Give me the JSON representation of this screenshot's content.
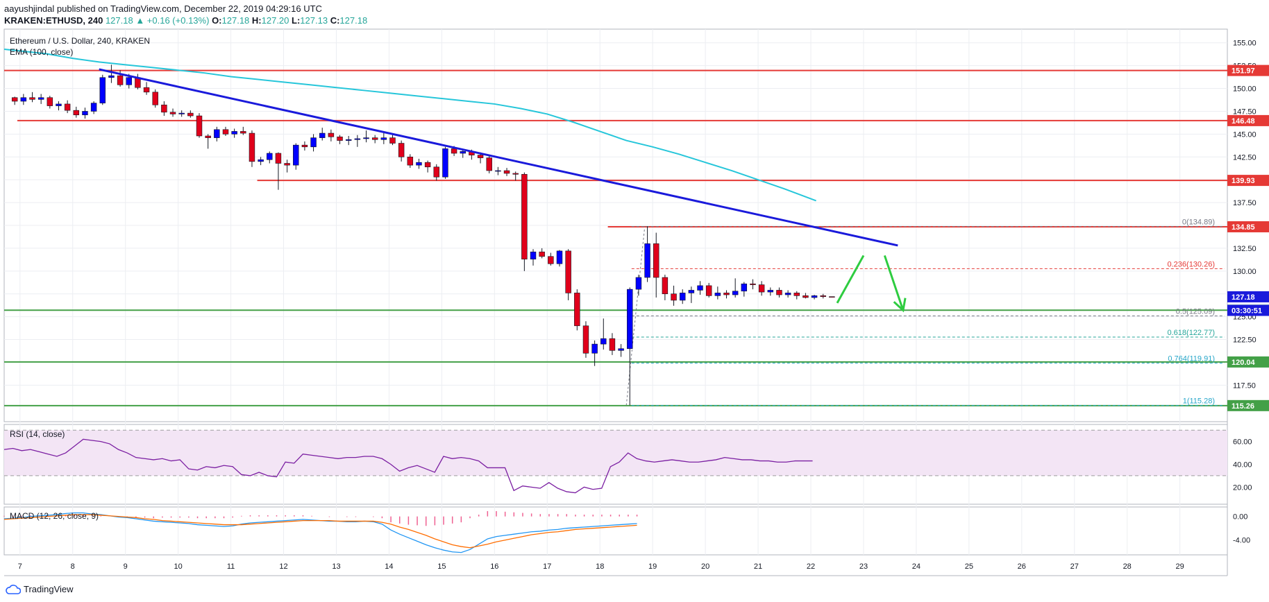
{
  "header": {
    "line1": "aayushjindal published on TradingView.com, December 22, 2019 04:29:16 UTC",
    "symbol": "KRAKEN:ETHUSD, 240",
    "last": "127.18",
    "change": "▲ +0.16 (+0.13%)",
    "o_label": "O:",
    "o": "127.18",
    "h_label": "H:",
    "h": "127.20",
    "l_label": "L:",
    "l": "127.13",
    "c_label": "C:",
    "c": "127.18"
  },
  "legend": {
    "title": "Ethereum / U.S. Dollar, 240, KRAKEN",
    "ema": "EMA (100, close)",
    "rsi": "RSI (14, close)",
    "macd": "MACD (12, 26, close, 9)"
  },
  "footer": {
    "brand": "TradingView"
  },
  "colors": {
    "up": "#0000ff",
    "down": "#e0001b",
    "ema": "#26c6da",
    "trend": "#1a1adb",
    "resistance": "#e53935",
    "support": "#43a047",
    "fib": "#26a6c9",
    "arrow": "#2ecc40",
    "rsi_line": "#7b1fa2",
    "macd_line": "#2196f3",
    "signal_line": "#ff6d00"
  },
  "chart_data": [
    {
      "type": "candlestick",
      "title": "Ethereum / U.S. Dollar, 240, KRAKEN",
      "ylim": [
        113.5,
        156.5
      ],
      "yticks": [
        "155.00",
        "152.50",
        "150.00",
        "147.50",
        "145.00",
        "142.50",
        "140.00",
        "137.50",
        "135.00",
        "132.50",
        "130.00",
        "127.50",
        "125.00",
        "122.50",
        "120.00",
        "117.50"
      ],
      "xticks": [
        "7",
        "8",
        "9",
        "10",
        "11",
        "12",
        "13",
        "14",
        "15",
        "16",
        "17",
        "18",
        "19",
        "20",
        "21",
        "22",
        "23",
        "24",
        "25",
        "26",
        "27",
        "28",
        "29"
      ],
      "x_start_day": 6.7,
      "x_end_day": 29.9,
      "candles_note": "4h OHLC candles, Dec 6.9 - Dec 22.1",
      "candles": [
        [
          149.0,
          149.1,
          148.2,
          148.6
        ],
        [
          148.6,
          149.4,
          148.2,
          149.0
        ],
        [
          149.0,
          149.6,
          148.5,
          148.8
        ],
        [
          148.8,
          149.4,
          148.3,
          149.0
        ],
        [
          149.0,
          149.2,
          147.8,
          148.1
        ],
        [
          148.1,
          148.6,
          147.6,
          148.3
        ],
        [
          148.3,
          148.7,
          147.3,
          147.6
        ],
        [
          147.6,
          148.0,
          146.8,
          147.1
        ],
        [
          147.1,
          147.9,
          146.7,
          147.5
        ],
        [
          147.5,
          148.6,
          147.2,
          148.4
        ],
        [
          148.4,
          151.5,
          148.2,
          151.2
        ],
        [
          151.2,
          152.6,
          150.6,
          151.4
        ],
        [
          151.4,
          152.0,
          150.2,
          150.4
        ],
        [
          150.4,
          151.6,
          150.0,
          151.2
        ],
        [
          151.2,
          151.6,
          149.9,
          150.1
        ],
        [
          150.1,
          150.7,
          149.3,
          149.6
        ],
        [
          149.6,
          149.9,
          147.9,
          148.2
        ],
        [
          148.2,
          148.6,
          147.0,
          147.4
        ],
        [
          147.4,
          147.8,
          146.9,
          147.2
        ],
        [
          147.2,
          147.6,
          146.9,
          147.3
        ],
        [
          147.3,
          147.6,
          146.8,
          147.0
        ],
        [
          147.0,
          147.3,
          144.6,
          144.8
        ],
        [
          144.8,
          145.0,
          143.4,
          144.6
        ],
        [
          144.6,
          145.8,
          144.2,
          145.5
        ],
        [
          145.5,
          145.8,
          144.8,
          145.0
        ],
        [
          145.0,
          145.6,
          144.6,
          145.3
        ],
        [
          145.3,
          145.8,
          144.9,
          145.1
        ],
        [
          145.1,
          145.4,
          141.4,
          142.0
        ],
        [
          142.0,
          142.5,
          141.6,
          142.2
        ],
        [
          142.2,
          143.1,
          141.8,
          142.9
        ],
        [
          142.9,
          143.0,
          138.9,
          141.8
        ],
        [
          141.8,
          142.2,
          140.8,
          141.6
        ],
        [
          141.6,
          144.0,
          141.1,
          143.8
        ],
        [
          143.8,
          144.2,
          143.2,
          143.6
        ],
        [
          143.6,
          145.0,
          143.1,
          144.6
        ],
        [
          144.6,
          145.7,
          144.3,
          145.1
        ],
        [
          145.1,
          145.5,
          144.2,
          144.7
        ],
        [
          144.7,
          144.9,
          143.9,
          144.3
        ],
        [
          144.3,
          144.8,
          143.8,
          144.4
        ],
        [
          144.4,
          144.9,
          143.6,
          144.5
        ],
        [
          144.5,
          145.4,
          144.1,
          144.6
        ],
        [
          144.6,
          144.9,
          144.0,
          144.4
        ],
        [
          144.4,
          145.2,
          143.9,
          144.6
        ],
        [
          144.6,
          145.1,
          143.8,
          144.0
        ],
        [
          144.0,
          144.3,
          142.0,
          142.5
        ],
        [
          142.5,
          142.8,
          141.3,
          141.6
        ],
        [
          141.6,
          142.3,
          141.2,
          141.9
        ],
        [
          141.9,
          142.1,
          140.8,
          141.4
        ],
        [
          141.4,
          141.7,
          139.9,
          140.3
        ],
        [
          140.3,
          143.6,
          140.1,
          143.4
        ],
        [
          143.4,
          143.7,
          142.6,
          142.9
        ],
        [
          142.9,
          143.4,
          142.4,
          143.1
        ],
        [
          143.1,
          143.3,
          142.2,
          142.7
        ],
        [
          142.7,
          143.0,
          141.8,
          142.4
        ],
        [
          142.4,
          142.6,
          140.7,
          141.0
        ],
        [
          141.0,
          141.4,
          140.5,
          141.0
        ],
        [
          141.0,
          141.3,
          140.4,
          140.7
        ],
        [
          140.7,
          140.9,
          139.9,
          140.6
        ],
        [
          140.6,
          140.8,
          130.0,
          131.3
        ],
        [
          131.3,
          132.4,
          130.6,
          132.1
        ],
        [
          132.1,
          132.5,
          131.4,
          131.6
        ],
        [
          131.6,
          132.0,
          130.6,
          130.8
        ],
        [
          130.8,
          132.3,
          130.5,
          132.2
        ],
        [
          132.2,
          132.4,
          126.8,
          127.6
        ],
        [
          127.6,
          128.0,
          123.5,
          124.0
        ],
        [
          124.0,
          124.5,
          120.5,
          121.0
        ],
        [
          121.0,
          122.4,
          119.6,
          122.0
        ],
        [
          122.0,
          124.8,
          121.4,
          122.6
        ],
        [
          122.6,
          123.2,
          120.8,
          121.3
        ],
        [
          121.3,
          122.0,
          120.6,
          121.5
        ],
        [
          121.5,
          128.2,
          115.3,
          128.0
        ],
        [
          128.0,
          129.6,
          127.3,
          129.3
        ],
        [
          129.3,
          134.9,
          128.8,
          133.0
        ],
        [
          133.0,
          134.2,
          127.1,
          129.3
        ],
        [
          129.3,
          129.6,
          126.8,
          127.5
        ],
        [
          127.5,
          128.4,
          126.2,
          126.8
        ],
        [
          126.8,
          128.0,
          126.4,
          127.6
        ],
        [
          127.6,
          128.3,
          126.5,
          127.9
        ],
        [
          127.9,
          128.9,
          127.4,
          128.4
        ],
        [
          128.4,
          128.7,
          127.1,
          127.3
        ],
        [
          127.3,
          128.3,
          126.9,
          127.6
        ],
        [
          127.6,
          127.9,
          127.0,
          127.4
        ],
        [
          127.4,
          129.2,
          127.1,
          127.8
        ],
        [
          127.8,
          128.8,
          127.2,
          128.6
        ],
        [
          128.6,
          129.1,
          128.0,
          128.5
        ],
        [
          128.5,
          128.9,
          127.3,
          127.7
        ],
        [
          127.7,
          128.2,
          127.3,
          127.9
        ],
        [
          127.9,
          128.2,
          127.1,
          127.4
        ],
        [
          127.4,
          127.9,
          127.1,
          127.6
        ],
        [
          127.6,
          127.8,
          126.9,
          127.3
        ],
        [
          127.3,
          127.6,
          127.0,
          127.1
        ],
        [
          127.1,
          127.4,
          126.9,
          127.3
        ],
        [
          127.3,
          127.5,
          127.0,
          127.2
        ],
        [
          127.2,
          127.2,
          127.1,
          127.18
        ]
      ],
      "ema": [
        [
          6.7,
          154.3
        ],
        [
          7.5,
          153.8
        ],
        [
          8.0,
          153.3
        ],
        [
          8.5,
          152.9
        ],
        [
          9.0,
          152.6
        ],
        [
          9.5,
          152.3
        ],
        [
          10.0,
          152.0
        ],
        [
          10.5,
          151.7
        ],
        [
          11.0,
          151.3
        ],
        [
          11.5,
          151.0
        ],
        [
          12.0,
          150.7
        ],
        [
          12.5,
          150.4
        ],
        [
          13.0,
          150.1
        ],
        [
          13.5,
          149.8
        ],
        [
          14.0,
          149.5
        ],
        [
          14.5,
          149.2
        ],
        [
          15.0,
          148.9
        ],
        [
          15.5,
          148.6
        ],
        [
          16.0,
          148.3
        ],
        [
          16.5,
          147.8
        ],
        [
          17.0,
          147.2
        ],
        [
          17.5,
          146.3
        ],
        [
          18.0,
          145.3
        ],
        [
          18.5,
          144.3
        ],
        [
          19.0,
          143.6
        ],
        [
          19.5,
          142.8
        ],
        [
          20.0,
          141.9
        ],
        [
          20.5,
          141.0
        ],
        [
          21.0,
          140.0
        ],
        [
          21.5,
          139.0
        ],
        [
          22.1,
          137.7
        ]
      ],
      "horizontal_lines": [
        {
          "kind": "resistance",
          "price": 151.97,
          "label": "151.97",
          "x_from": 6.7
        },
        {
          "kind": "resistance",
          "price": 146.48,
          "label": "146.48",
          "x_from": 6.95
        },
        {
          "kind": "resistance",
          "price": 139.93,
          "label": "139.93",
          "x_from": 11.5
        },
        {
          "kind": "resistance",
          "price": 134.85,
          "label": "134.85",
          "x_from": 18.15
        },
        {
          "kind": "support",
          "price": 125.71,
          "label": "125.71",
          "x_from": 6.7
        },
        {
          "kind": "support",
          "price": 120.04,
          "label": "120.04",
          "x_from": 6.7
        },
        {
          "kind": "support",
          "price": 115.26,
          "label": "115.26",
          "x_from": 6.7
        }
      ],
      "price_tags": [
        {
          "price": 127.18,
          "label": "127.18",
          "color": "#1a1adb"
        },
        {
          "price": 126.3,
          "label": "03:30:51",
          "color": "#1a1adb"
        }
      ],
      "trendline": {
        "from": [
          8.5,
          152.1
        ],
        "to": [
          23.65,
          132.8
        ]
      },
      "fibonacci": [
        {
          "level": "0",
          "price": 134.89,
          "label": "0(134.89)",
          "color": "#787b86"
        },
        {
          "level": "0.236",
          "price": 130.26,
          "label": "0.236(130.26)",
          "color": "#e53935"
        },
        {
          "level": "0.5",
          "price": 125.09,
          "label": "0.5(125.09)",
          "color": "#787b86"
        },
        {
          "level": "0.618",
          "price": 122.77,
          "label": "0.618(122.77)",
          "color": "#26a69a"
        },
        {
          "level": "0.764",
          "price": 119.91,
          "label": "0.764(119.91)",
          "color": "#26a6c9"
        },
        {
          "level": "1",
          "price": 115.28,
          "label": "1(115.28)",
          "color": "#26a6c9"
        }
      ],
      "fib_x_from": 18.6,
      "fib_diagonal": {
        "from": [
          18.5,
          115.28
        ],
        "to": [
          18.85,
          134.89
        ]
      },
      "arrows": [
        {
          "from": [
            22.5,
            126.5
          ],
          "to": [
            23.0,
            131.7
          ]
        },
        {
          "from": [
            23.4,
            131.7
          ],
          "to": [
            23.75,
            125.7
          ]
        }
      ]
    },
    {
      "type": "line",
      "title": "RSI (14, close)",
      "ylim": [
        5,
        75
      ],
      "yticks": [
        "60.00",
        "40.00",
        "20.00"
      ],
      "bands": [
        70,
        30
      ],
      "values": [
        53,
        54,
        52,
        53,
        51,
        49,
        47,
        50,
        56,
        62,
        61,
        60,
        58,
        53,
        50,
        46,
        45,
        44,
        45,
        43,
        44,
        36,
        35,
        38,
        37,
        39,
        38,
        31,
        30,
        33,
        30,
        29,
        42,
        41,
        49,
        48,
        47,
        46,
        45,
        46,
        46,
        47,
        47,
        45,
        40,
        34,
        37,
        39,
        36,
        33,
        47,
        45,
        46,
        45,
        43,
        37,
        37,
        37,
        17,
        21,
        20,
        19,
        24,
        19,
        16,
        15,
        20,
        18,
        19,
        38,
        42,
        50,
        45,
        43,
        42,
        43,
        44,
        43,
        42,
        42,
        43,
        44,
        46,
        45,
        44,
        44,
        43,
        43,
        42,
        42,
        43,
        43,
        43
      ]
    },
    {
      "type": "line",
      "title": "MACD (12, 26, close, 9)",
      "ylim": [
        -6.5,
        1.6
      ],
      "yticks": [
        "0.00",
        "-4.00"
      ],
      "x_start_day": 6.7,
      "step_days": 0.1667,
      "macd": [
        -0.4,
        -0.3,
        -0.2,
        0,
        0.1,
        0.2,
        0.3,
        0.5,
        0.6,
        0.6,
        0.4,
        0.3,
        0.1,
        -0.1,
        -0.2,
        -0.4,
        -0.6,
        -0.8,
        -0.9,
        -1.0,
        -1.1,
        -1.2,
        -1.4,
        -1.5,
        -1.6,
        -1.7,
        -1.6,
        -1.3,
        -1.1,
        -1.0,
        -0.9,
        -0.8,
        -0.7,
        -0.6,
        -0.5,
        -0.6,
        -0.7,
        -0.8,
        -0.8,
        -0.9,
        -0.9,
        -0.8,
        -0.9,
        -1.3,
        -2.3,
        -3.0,
        -3.6,
        -4.2,
        -4.8,
        -5.3,
        -5.7,
        -6.0,
        -6.1,
        -5.6,
        -4.7,
        -3.8,
        -3.4,
        -3.2,
        -3.0,
        -2.8,
        -2.6,
        -2.5,
        -2.3,
        -2.2,
        -2.0,
        -1.9,
        -1.8,
        -1.7,
        -1.6,
        -1.5,
        -1.4,
        -1.3,
        -1.2
      ],
      "signal": [
        -0.5,
        -0.4,
        -0.3,
        -0.2,
        -0.1,
        0,
        0.1,
        0.2,
        0.3,
        0.3,
        0.3,
        0.2,
        0.1,
        0,
        -0.1,
        -0.2,
        -0.4,
        -0.5,
        -0.7,
        -0.8,
        -0.9,
        -1.0,
        -1.1,
        -1.2,
        -1.3,
        -1.4,
        -1.4,
        -1.4,
        -1.3,
        -1.2,
        -1.1,
        -1.0,
        -0.9,
        -0.8,
        -0.7,
        -0.7,
        -0.7,
        -0.7,
        -0.8,
        -0.8,
        -0.8,
        -0.8,
        -0.8,
        -1.0,
        -1.3,
        -1.8,
        -2.2,
        -2.7,
        -3.2,
        -3.8,
        -4.3,
        -4.8,
        -5.1,
        -5.3,
        -5.0,
        -4.7,
        -4.3,
        -4.0,
        -3.7,
        -3.4,
        -3.1,
        -2.9,
        -2.7,
        -2.6,
        -2.4,
        -2.2,
        -2.1,
        -2.0,
        -1.9,
        -1.8,
        -1.7,
        -1.6,
        -1.5
      ],
      "histogram_note": "histogram = macd - signal"
    }
  ]
}
